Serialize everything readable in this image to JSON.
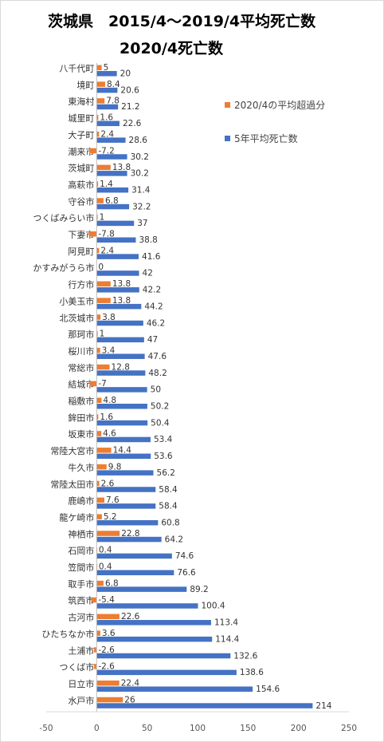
{
  "title_line1": "茨城県　2015/4～2019/4平均死亡数",
  "title_line2": "2020/4死亡数",
  "colors": {
    "orange": "#ed7d31",
    "blue": "#4472c4"
  },
  "chart_data": {
    "type": "bar",
    "orientation": "horizontal",
    "title": "茨城県　2015/4～2019/4平均死亡数 2020/4死亡数",
    "xlim": [
      -50,
      250
    ],
    "xticks": [
      -50,
      0,
      50,
      100,
      150,
      200,
      250
    ],
    "grid": false,
    "legend_position": "right",
    "categories": [
      "八千代町",
      "境町",
      "東海村",
      "城里町",
      "大子町",
      "潮来市",
      "茨城町",
      "高萩市",
      "守谷市",
      "つくばみらい市",
      "下妻市",
      "阿見町",
      "かすみがうら市",
      "行方市",
      "小美玉市",
      "北茨城市",
      "那珂市",
      "桜川市",
      "常総市",
      "結城市",
      "稲敷市",
      "鉾田市",
      "坂東市",
      "常陸大宮市",
      "牛久市",
      "常陸太田市",
      "鹿嶋市",
      "龍ケ崎市",
      "神栖市",
      "石岡市",
      "笠間市",
      "取手市",
      "筑西市",
      "古河市",
      "ひたちなか市",
      "土浦市",
      "つくば市",
      "日立市",
      "水戸市"
    ],
    "series": [
      {
        "name": "2020/4の平均超過分",
        "color": "#ed7d31",
        "values": [
          5,
          8.4,
          7.8,
          1.6,
          2.4,
          -7.2,
          13.8,
          1.4,
          6.8,
          1,
          -7.8,
          2.4,
          0,
          13.8,
          13.8,
          3.8,
          1,
          3.4,
          12.8,
          -7,
          4.8,
          1.6,
          4.6,
          14.4,
          9.8,
          2.6,
          7.6,
          5.2,
          22.8,
          0.4,
          0.4,
          6.8,
          -5.4,
          22.6,
          3.6,
          -2.6,
          -2.6,
          22.4,
          26
        ]
      },
      {
        "name": "5年平均死亡数",
        "color": "#4472c4",
        "values": [
          20,
          20.6,
          21.2,
          22.6,
          28.6,
          30.2,
          30.2,
          31.4,
          32.2,
          37,
          38.8,
          41.6,
          42,
          42.2,
          44.2,
          46.2,
          47,
          47.6,
          48.2,
          50,
          50.2,
          50.4,
          53.4,
          53.6,
          56.2,
          58.4,
          58.4,
          60.8,
          64.2,
          74.6,
          76.6,
          89.2,
          100.4,
          113.4,
          114.4,
          132.6,
          138.6,
          154.6,
          214
        ]
      }
    ]
  }
}
